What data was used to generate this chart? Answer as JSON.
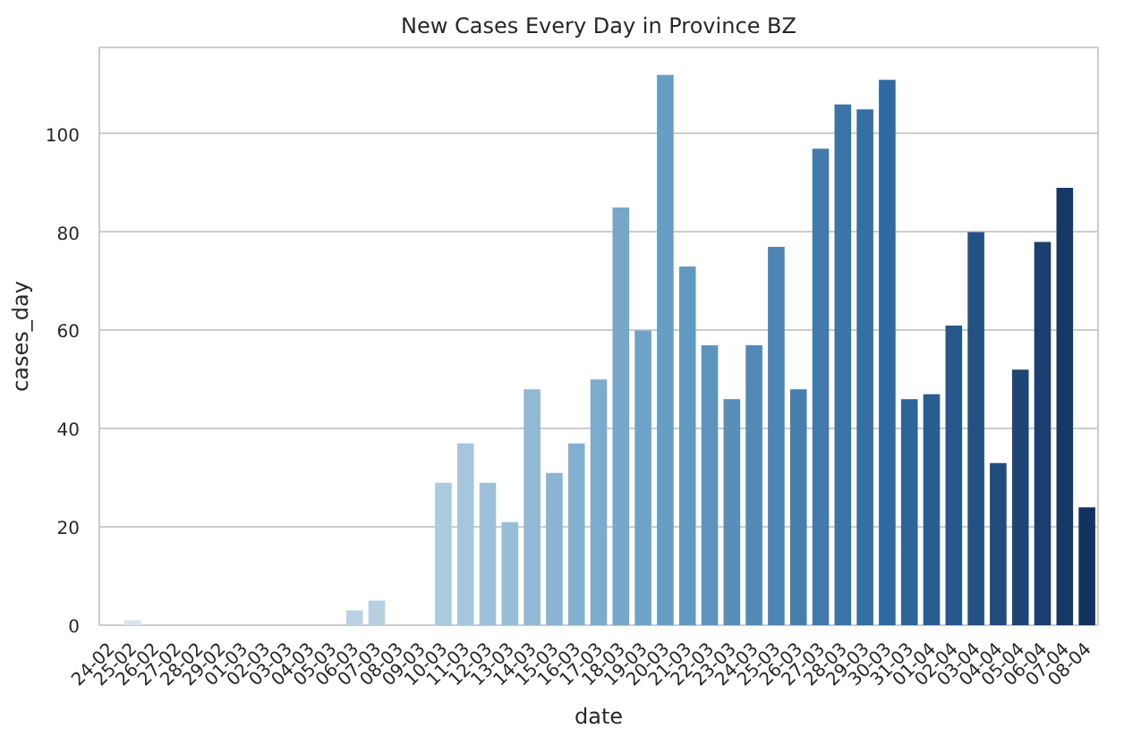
{
  "chart_data": {
    "type": "bar",
    "title": "New Cases Every Day in Province BZ",
    "xlabel": "date",
    "ylabel": "cases_day",
    "categories": [
      "24-02",
      "25-02",
      "26-02",
      "27-02",
      "28-02",
      "29-02",
      "01-03",
      "02-03",
      "03-03",
      "04-03",
      "05-03",
      "06-03",
      "07-03",
      "08-03",
      "09-03",
      "10-03",
      "11-03",
      "12-03",
      "13-03",
      "14-03",
      "15-03",
      "16-03",
      "17-03",
      "18-03",
      "19-03",
      "20-03",
      "21-03",
      "22-03",
      "23-03",
      "24-03",
      "25-03",
      "26-03",
      "27-03",
      "28-03",
      "29-03",
      "30-03",
      "31-03",
      "01-04",
      "02-04",
      "03-04",
      "04-04",
      "05-04",
      "06-04",
      "07-04",
      "08-04"
    ],
    "values": [
      0,
      1,
      0,
      0,
      0,
      0,
      0,
      0,
      0,
      0,
      0,
      3,
      5,
      0,
      0,
      29,
      37,
      29,
      21,
      48,
      31,
      37,
      50,
      85,
      60,
      112,
      73,
      57,
      46,
      57,
      77,
      48,
      97,
      106,
      105,
      111,
      46,
      47,
      61,
      80,
      33,
      52,
      78,
      89,
      24
    ],
    "colors": [
      "#dce6f2",
      "#d9e4f1",
      "#d6e2ef",
      "#d2e0ee",
      "#cfdfed",
      "#ccddeb",
      "#c9dbea",
      "#c6d9e9",
      "#c2d7e7",
      "#bfd5e6",
      "#bcd3e5",
      "#b9d1e3",
      "#b6d0e2",
      "#b2cee1",
      "#afccdf",
      "#accade",
      "#a5c6dc",
      "#9ec1d9",
      "#98bdd7",
      "#91b8d4",
      "#8ab4d2",
      "#83b0cf",
      "#7cabcd",
      "#76a7ca",
      "#6fa2c8",
      "#689ec5",
      "#6299c1",
      "#5d94be",
      "#578eba",
      "#5289b6",
      "#4c84b3",
      "#467faf",
      "#417aab",
      "#3b74a7",
      "#366fa4",
      "#306aa0",
      "#2d6499",
      "#2a5e92",
      "#27578b",
      "#245184",
      "#204b7c",
      "#1d4575",
      "#1a3f6e",
      "#173867",
      "#143260"
    ],
    "ylim": [
      0,
      117.6
    ],
    "yticks": [
      0,
      20,
      40,
      60,
      80,
      100
    ],
    "grid": "y"
  }
}
